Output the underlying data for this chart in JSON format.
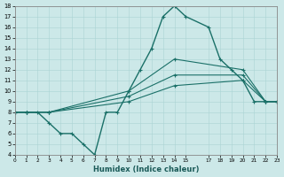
{
  "xlabel": "Humidex (Indice chaleur)",
  "bg_color": "#cce8e8",
  "line_color": "#1a7068",
  "xlim": [
    0,
    23
  ],
  "ylim": [
    4,
    18
  ],
  "yticks": [
    4,
    5,
    6,
    7,
    8,
    9,
    10,
    11,
    12,
    13,
    14,
    15,
    16,
    17,
    18
  ],
  "xticks": [
    0,
    1,
    2,
    3,
    4,
    5,
    6,
    7,
    8,
    9,
    10,
    11,
    12,
    13,
    14,
    15,
    17,
    18,
    19,
    20,
    21,
    22,
    23
  ],
  "series": [
    {
      "x": [
        0,
        1,
        2,
        3,
        4,
        5,
        6,
        7,
        8,
        9,
        10,
        11,
        12,
        13,
        14,
        15,
        17,
        18,
        19,
        20,
        21,
        22,
        23
      ],
      "y": [
        8,
        8,
        8,
        7,
        6,
        6,
        5,
        4,
        8,
        8,
        10,
        12,
        14,
        17,
        18,
        17,
        16,
        13,
        12,
        11,
        9,
        9,
        9
      ],
      "lw": 1.0
    },
    {
      "x": [
        0,
        1,
        3,
        10,
        14,
        20,
        22,
        23
      ],
      "y": [
        8,
        8,
        8,
        10,
        13,
        12,
        9,
        9
      ],
      "lw": 0.8
    },
    {
      "x": [
        0,
        1,
        3,
        10,
        14,
        20,
        22,
        23
      ],
      "y": [
        8,
        8,
        8,
        9.5,
        11.5,
        11.5,
        9,
        9
      ],
      "lw": 0.8
    },
    {
      "x": [
        0,
        1,
        3,
        10,
        14,
        20,
        22,
        23
      ],
      "y": [
        8,
        8,
        8,
        9,
        10.5,
        11,
        9,
        9
      ],
      "lw": 0.8
    }
  ]
}
